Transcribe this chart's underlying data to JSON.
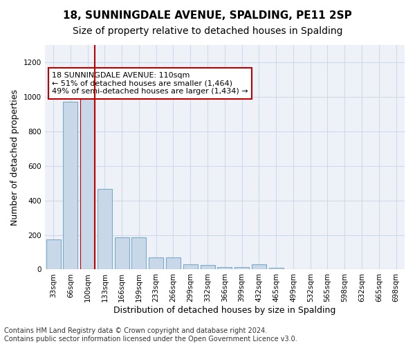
{
  "title1": "18, SUNNINGDALE AVENUE, SPALDING, PE11 2SP",
  "title2": "Size of property relative to detached houses in Spalding",
  "xlabel": "Distribution of detached houses by size in Spalding",
  "ylabel": "Number of detached properties",
  "categories": [
    "33sqm",
    "66sqm",
    "100sqm",
    "133sqm",
    "166sqm",
    "199sqm",
    "233sqm",
    "266sqm",
    "299sqm",
    "332sqm",
    "366sqm",
    "399sqm",
    "432sqm",
    "465sqm",
    "499sqm",
    "532sqm",
    "565sqm",
    "598sqm",
    "632sqm",
    "665sqm",
    "698sqm"
  ],
  "values": [
    175,
    970,
    990,
    465,
    185,
    185,
    70,
    70,
    28,
    25,
    15,
    12,
    28,
    10,
    0,
    0,
    0,
    0,
    0,
    0,
    0
  ],
  "bar_color": "#c8d8e8",
  "bar_edge_color": "#7aaac8",
  "highlight_index": 2,
  "highlight_bar_color": "#c8d8e8",
  "highlight_bar_edge_color": "#c00000",
  "vline_x": 2,
  "vline_color": "#c00000",
  "annotation_text": "18 SUNNINGDALE AVENUE: 110sqm\n← 51% of detached houses are smaller (1,464)\n49% of semi-detached houses are larger (1,434) →",
  "annotation_box_color": "#ffffff",
  "annotation_box_edge_color": "#c00000",
  "ylim": [
    0,
    1300
  ],
  "yticks": [
    0,
    200,
    400,
    600,
    800,
    1000,
    1200
  ],
  "grid_color": "#d0d8e8",
  "bg_color": "#eef2f8",
  "footer": "Contains HM Land Registry data © Crown copyright and database right 2024.\nContains public sector information licensed under the Open Government Licence v3.0.",
  "title1_fontsize": 11,
  "title2_fontsize": 10,
  "xlabel_fontsize": 9,
  "ylabel_fontsize": 9,
  "tick_fontsize": 7.5,
  "annotation_fontsize": 8,
  "footer_fontsize": 7
}
